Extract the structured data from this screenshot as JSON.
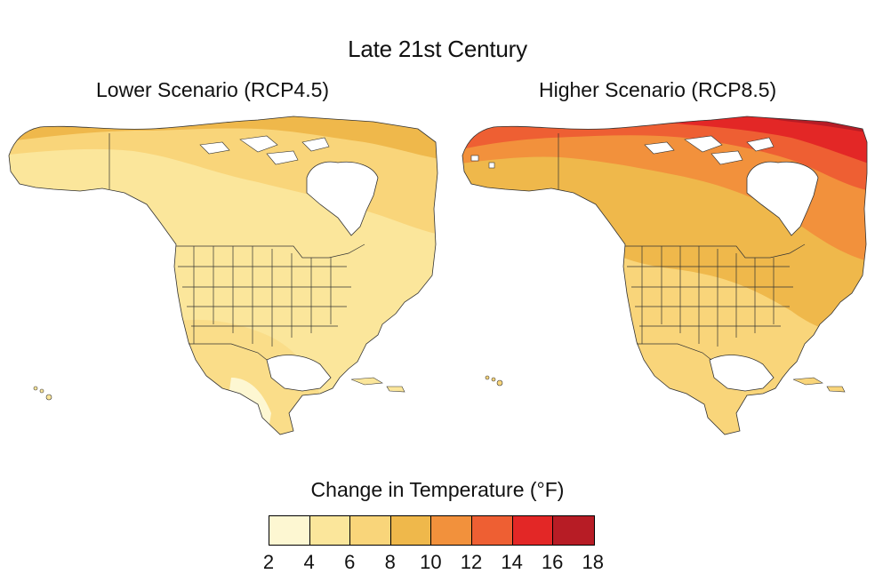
{
  "title": "Late 21st Century",
  "panels": [
    {
      "title": "Lower Scenario (RCP4.5)"
    },
    {
      "title": "Higher Scenario (RCP8.5)"
    }
  ],
  "legend": {
    "title": "Change in Temperature (°F)",
    "ticks": [
      "2",
      "4",
      "6",
      "8",
      "10",
      "12",
      "14",
      "16",
      "18"
    ],
    "colors": [
      "#fdf7d2",
      "#fbe69b",
      "#f9d57a",
      "#efb84b",
      "#f2913c",
      "#ee5f33",
      "#e32726",
      "#b71c25"
    ]
  },
  "colors": {
    "ocean": "#ffffff",
    "land_outline": "#333333",
    "ice": "#ffffff"
  }
}
